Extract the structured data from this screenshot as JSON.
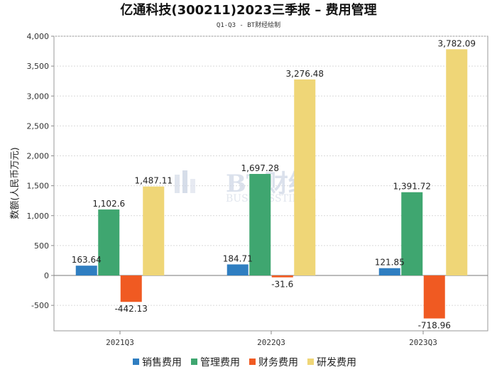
{
  "chart_data": {
    "type": "bar",
    "title": "亿通科技(300211)2023三季报 – 费用管理",
    "subtitle": "Q1-Q3 - BT财经绘制",
    "xlabel": "",
    "ylabel": "数额(人民币万元)",
    "categories": [
      "2021Q3",
      "2022Q3",
      "2023Q3"
    ],
    "series": [
      {
        "name": "销售费用",
        "color": "#2f7ec1",
        "values": [
          163.64,
          184.71,
          121.85
        ],
        "labels": [
          "163.64",
          "184.71",
          "121.85"
        ]
      },
      {
        "name": "管理费用",
        "color": "#3fa670",
        "values": [
          1102.6,
          1697.28,
          1391.72
        ],
        "labels": [
          "1,102.6",
          "1,697.28",
          "1,391.72"
        ]
      },
      {
        "name": "财务费用",
        "color": "#f05a22",
        "values": [
          -442.13,
          -31.6,
          -718.96
        ],
        "labels": [
          "-442.13",
          "-31.6",
          "-718.96"
        ]
      },
      {
        "name": "研发费用",
        "color": "#efd677",
        "values": [
          1487.11,
          3276.48,
          3782.09
        ],
        "labels": [
          "1,487.11",
          "3,276.48",
          "3,782.09"
        ]
      }
    ],
    "ylim": [
      -900,
      4000
    ],
    "yticks": [
      -500,
      0,
      500,
      1000,
      1500,
      2000,
      2500,
      3000,
      3500,
      4000
    ],
    "ytick_labels": [
      "-500",
      "0",
      "500",
      "1,000",
      "1,500",
      "2,000",
      "2,500",
      "3,000",
      "3,500",
      "4,000"
    ],
    "grid": true,
    "legend_position": "bottom-center"
  },
  "watermark": {
    "brand": "BT财经",
    "tagline": "BUSINESSTIMES"
  }
}
